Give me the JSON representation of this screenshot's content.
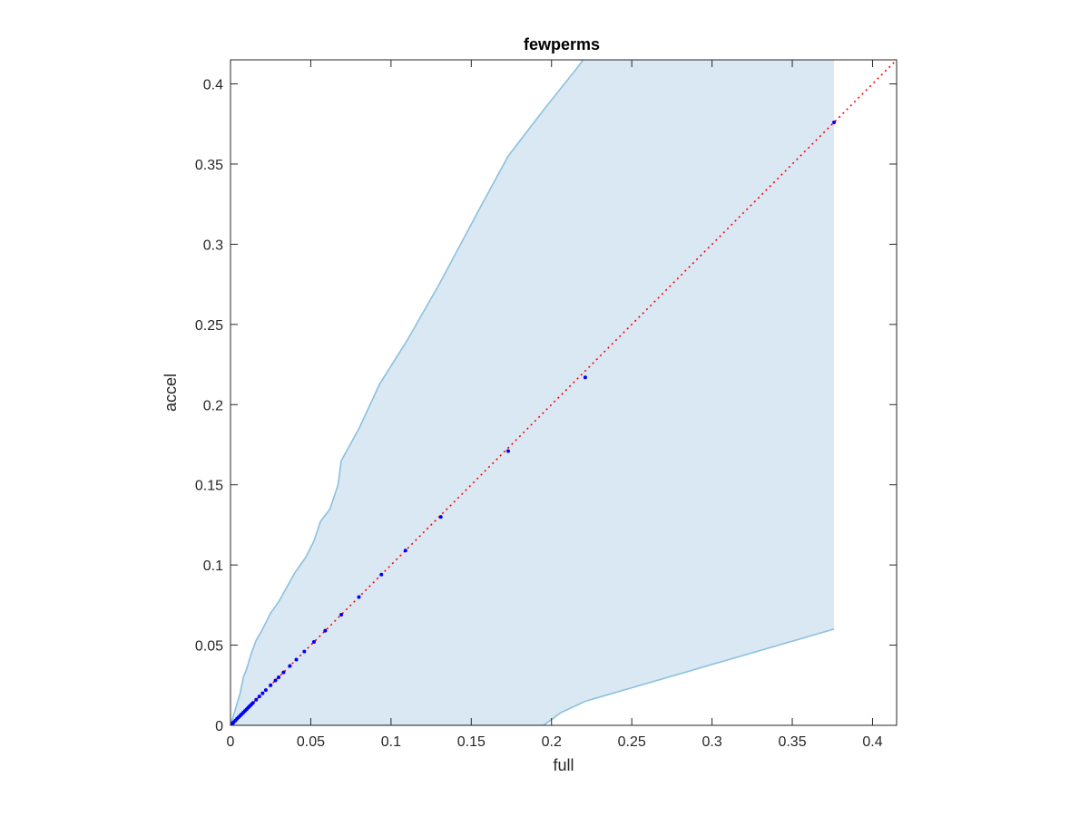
{
  "chart_data": {
    "type": "scatter",
    "title": "fewperms",
    "xlabel": "full",
    "ylabel": "accel",
    "xlim": [
      0,
      0.415
    ],
    "ylim": [
      0,
      0.415
    ],
    "xticks": [
      0,
      0.05,
      0.1,
      0.15,
      0.2,
      0.25,
      0.3,
      0.35,
      0.4
    ],
    "yticks": [
      0,
      0.05,
      0.1,
      0.15,
      0.2,
      0.25,
      0.3,
      0.35,
      0.4
    ],
    "xtick_labels": [
      "0",
      "0.05",
      "0.1",
      "0.15",
      "0.2",
      "0.25",
      "0.3",
      "0.35",
      "0.4"
    ],
    "ytick_labels": [
      "0",
      "0.05",
      "0.1",
      "0.15",
      "0.2",
      "0.25",
      "0.3",
      "0.35",
      "0.4"
    ],
    "grid": false,
    "colors": {
      "points": "#0000ff",
      "identity_line": "#ff0000",
      "band_fill": "#d9e8f3",
      "band_edge": "#8bc0df",
      "axes": "#262626"
    },
    "identity_line": {
      "x": [
        0,
        0.415
      ],
      "y": [
        0,
        0.415
      ],
      "style": "dotted"
    },
    "confidence_band": {
      "upper": [
        [
          0,
          0
        ],
        [
          0.003,
          0.01
        ],
        [
          0.006,
          0.02
        ],
        [
          0.008,
          0.03
        ],
        [
          0.01,
          0.035
        ],
        [
          0.013,
          0.045
        ],
        [
          0.016,
          0.053
        ],
        [
          0.02,
          0.06
        ],
        [
          0.025,
          0.07
        ],
        [
          0.03,
          0.077
        ],
        [
          0.035,
          0.086
        ],
        [
          0.04,
          0.095
        ],
        [
          0.047,
          0.105
        ],
        [
          0.052,
          0.115
        ],
        [
          0.056,
          0.127
        ],
        [
          0.062,
          0.135
        ],
        [
          0.067,
          0.15
        ],
        [
          0.069,
          0.165
        ],
        [
          0.08,
          0.185
        ],
        [
          0.093,
          0.213
        ],
        [
          0.11,
          0.24
        ],
        [
          0.13,
          0.275
        ],
        [
          0.154,
          0.32
        ],
        [
          0.173,
          0.355
        ],
        [
          0.196,
          0.385
        ],
        [
          0.216,
          0.41
        ],
        [
          0.219,
          0.414
        ]
      ],
      "lower": [
        [
          0,
          0
        ],
        [
          0.195,
          0
        ],
        [
          0.206,
          0.008
        ],
        [
          0.221,
          0.015
        ],
        [
          0.376,
          0.06
        ]
      ],
      "x_max": 0.376
    },
    "points": {
      "x": [
        0.0005,
        0.001,
        0.0015,
        0.002,
        0.003,
        0.004,
        0.005,
        0.006,
        0.007,
        0.008,
        0.009,
        0.01,
        0.011,
        0.012,
        0.013,
        0.014,
        0.016,
        0.018,
        0.02,
        0.022,
        0.025,
        0.028,
        0.03,
        0.033,
        0.037,
        0.041,
        0.046,
        0.052,
        0.059,
        0.069,
        0.08,
        0.094,
        0.109,
        0.131,
        0.173,
        0.221,
        0.376
      ],
      "y": [
        0.0005,
        0.001,
        0.0015,
        0.002,
        0.003,
        0.004,
        0.005,
        0.006,
        0.007,
        0.008,
        0.009,
        0.01,
        0.011,
        0.012,
        0.013,
        0.014,
        0.016,
        0.018,
        0.02,
        0.022,
        0.025,
        0.028,
        0.03,
        0.033,
        0.037,
        0.041,
        0.046,
        0.052,
        0.059,
        0.069,
        0.08,
        0.094,
        0.109,
        0.13,
        0.171,
        0.217,
        0.376
      ]
    }
  }
}
